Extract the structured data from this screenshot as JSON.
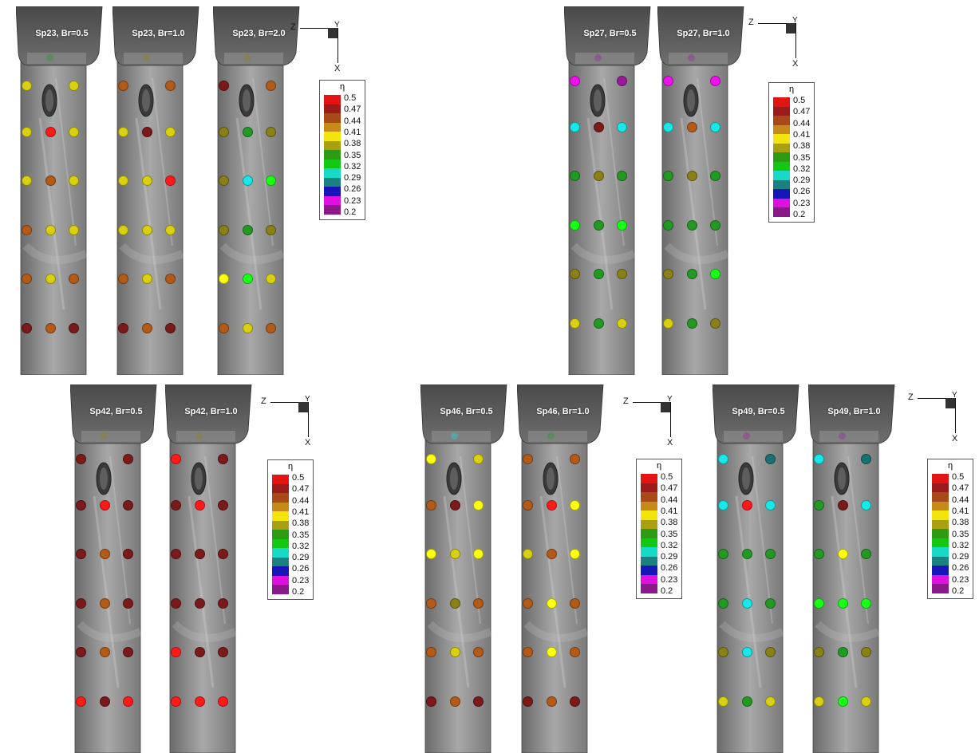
{
  "legend": {
    "title": "η",
    "ticks": [
      "0.5",
      "0.47",
      "0.44",
      "0.41",
      "0.38",
      "0.35",
      "0.32",
      "0.29",
      "0.26",
      "0.23",
      "0.2"
    ],
    "colors": [
      "#e31414",
      "#9b1a1a",
      "#a84a18",
      "#c68a18",
      "#f2e40d",
      "#a8a010",
      "#2d9c12",
      "#12c812",
      "#18d8c8",
      "#1a8080",
      "#1616b8",
      "#e010e0",
      "#8a1a8a"
    ]
  },
  "axes": {
    "z": "Z",
    "y": "Y",
    "x": "X"
  },
  "level_colors": {
    "0.5": "#ff1a1a",
    "0.47": "#7a1a1a",
    "0.44": "#b25a18",
    "0.41": "#ffff10",
    "0.4": "#d8d010",
    "0.38": "#8a8018",
    "0.35": "#229922",
    "0.34": "#18ff18",
    "0.32": "#18e8e8",
    "0.3": "#1a7070",
    "0.23": "#f010f0",
    "0.22": "#9a1a9a"
  },
  "panels": [
    {
      "label": "Sp23, Br=0.5",
      "hole": "0.35",
      "rows": [
        [
          "0.4",
          "0.4"
        ],
        [
          "0.4",
          "0.5",
          "0.4"
        ],
        [
          "0.4",
          "0.44",
          "0.4"
        ],
        [
          "0.44",
          "0.4",
          "0.4"
        ],
        [
          "0.44",
          "0.4",
          "0.44"
        ],
        [
          "0.47",
          "0.44",
          "0.47"
        ]
      ]
    },
    {
      "label": "Sp23, Br=1.0",
      "hole": "0.38",
      "rows": [
        [
          "0.44",
          "0.44"
        ],
        [
          "0.4",
          "0.47",
          "0.4"
        ],
        [
          "0.4",
          "0.4",
          "0.5"
        ],
        [
          "0.4",
          "0.4",
          "0.4"
        ],
        [
          "0.44",
          "0.4",
          "0.44"
        ],
        [
          "0.47",
          "0.44",
          "0.47"
        ]
      ]
    },
    {
      "label": "Sp23, Br=2.0",
      "hole": "0.38",
      "rows": [
        [
          "0.47",
          "0.44"
        ],
        [
          "0.38",
          "0.35",
          "0.38"
        ],
        [
          "0.38",
          "0.32",
          "0.34"
        ],
        [
          "0.38",
          "0.35",
          "0.38"
        ],
        [
          "0.41",
          "0.34",
          "0.4"
        ],
        [
          "0.44",
          "0.4",
          "0.44"
        ]
      ]
    },
    {
      "label": "Sp27, Br=0.5",
      "hole": "0.22",
      "rows": [
        [
          "0.23",
          "0.22"
        ],
        [
          "0.32",
          "0.47",
          "0.32"
        ],
        [
          "0.35",
          "0.38",
          "0.35"
        ],
        [
          "0.34",
          "0.35",
          "0.34"
        ],
        [
          "0.38",
          "0.35",
          "0.38"
        ],
        [
          "0.4",
          "0.35",
          "0.4"
        ]
      ]
    },
    {
      "label": "Sp27, Br=1.0",
      "hole": "0.22",
      "rows": [
        [
          "0.23",
          "0.23"
        ],
        [
          "0.32",
          "0.44",
          "0.32"
        ],
        [
          "0.35",
          "0.38",
          "0.35"
        ],
        [
          "0.35",
          "0.35",
          "0.35"
        ],
        [
          "0.38",
          "0.35",
          "0.34"
        ],
        [
          "0.4",
          "0.35",
          "0.38"
        ]
      ]
    },
    {
      "label": "Sp42, Br=0.5",
      "hole": "0.38",
      "rows": [
        [
          "0.47",
          "0.47"
        ],
        [
          "0.47",
          "0.5",
          "0.47"
        ],
        [
          "0.47",
          "0.44",
          "0.47"
        ],
        [
          "0.47",
          "0.44",
          "0.47"
        ],
        [
          "0.47",
          "0.44",
          "0.47"
        ],
        [
          "0.5",
          "0.47",
          "0.5"
        ]
      ]
    },
    {
      "label": "Sp42, Br=1.0",
      "hole": "0.38",
      "rows": [
        [
          "0.5",
          "0.47"
        ],
        [
          "0.47",
          "0.5",
          "0.47"
        ],
        [
          "0.47",
          "0.47",
          "0.47"
        ],
        [
          "0.47",
          "0.47",
          "0.47"
        ],
        [
          "0.5",
          "0.47",
          "0.47"
        ],
        [
          "0.5",
          "0.5",
          "0.5"
        ]
      ]
    },
    {
      "label": "Sp46, Br=0.5",
      "hole": "0.32",
      "rows": [
        [
          "0.41",
          "0.4"
        ],
        [
          "0.44",
          "0.47",
          "0.41"
        ],
        [
          "0.41",
          "0.4",
          "0.41"
        ],
        [
          "0.44",
          "0.38",
          "0.44"
        ],
        [
          "0.44",
          "0.4",
          "0.44"
        ],
        [
          "0.47",
          "0.44",
          "0.47"
        ]
      ]
    },
    {
      "label": "Sp46, Br=1.0",
      "hole": "0.35",
      "rows": [
        [
          "0.44",
          "0.44"
        ],
        [
          "0.44",
          "0.5",
          "0.41"
        ],
        [
          "0.4",
          "0.44",
          "0.41"
        ],
        [
          "0.44",
          "0.41",
          "0.44"
        ],
        [
          "0.44",
          "0.41",
          "0.44"
        ],
        [
          "0.47",
          "0.44",
          "0.47"
        ]
      ]
    },
    {
      "label": "Sp49, Br=0.5",
      "hole": "0.22",
      "rows": [
        [
          "0.32",
          "0.3"
        ],
        [
          "0.32",
          "0.5",
          "0.32"
        ],
        [
          "0.35",
          "0.35",
          "0.35"
        ],
        [
          "0.35",
          "0.32",
          "0.35"
        ],
        [
          "0.38",
          "0.32",
          "0.38"
        ],
        [
          "0.4",
          "0.35",
          "0.4"
        ]
      ]
    },
    {
      "label": "Sp49, Br=1.0",
      "hole": "0.22",
      "rows": [
        [
          "0.32",
          "0.3"
        ],
        [
          "0.35",
          "0.47",
          "0.32"
        ],
        [
          "0.35",
          "0.41",
          "0.35"
        ],
        [
          "0.34",
          "0.34",
          "0.34"
        ],
        [
          "0.38",
          "0.35",
          "0.38"
        ],
        [
          "0.4",
          "0.34",
          "0.4"
        ]
      ]
    }
  ]
}
